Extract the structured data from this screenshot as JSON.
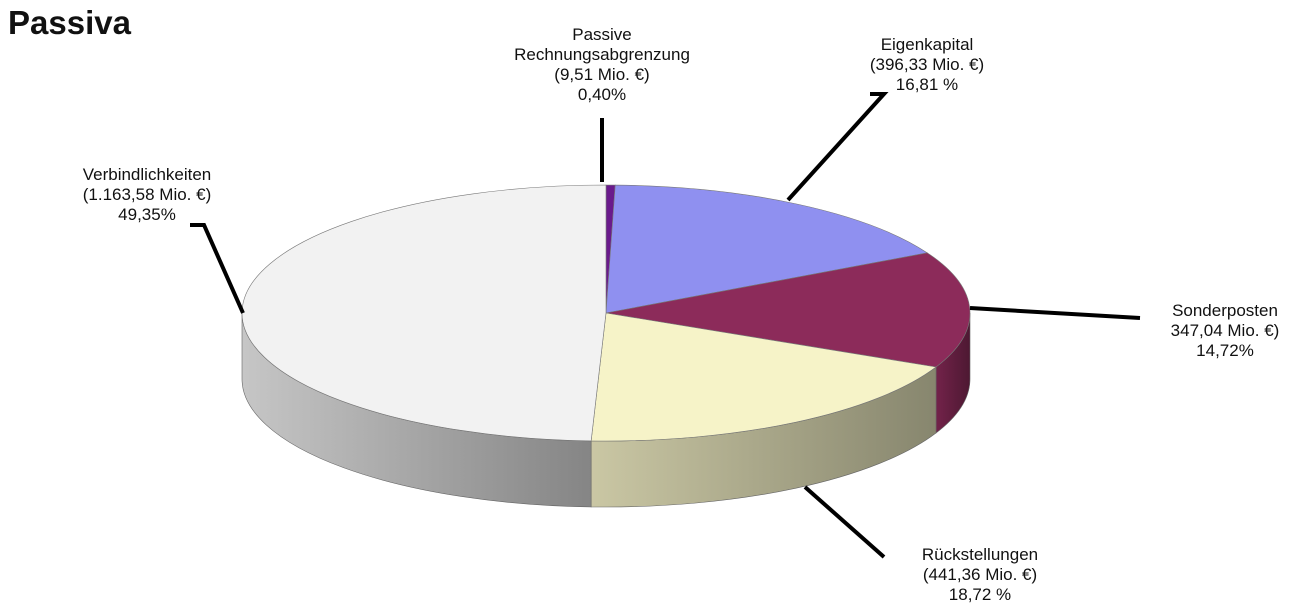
{
  "chart_data": {
    "type": "pie",
    "title": "Passiva",
    "slices": [
      {
        "lines": [
          "Passive",
          "Rechnungsabgrenzung",
          "(9,51 Mio. €)",
          "0,40%"
        ],
        "value": 9.51,
        "percent": 0.4,
        "color": "#6a1a8c"
      },
      {
        "lines": [
          "Eigenkapital",
          "(396,33 Mio. €)",
          "16,81 %"
        ],
        "value": 396.33,
        "percent": 16.81,
        "color": "#8f90f0"
      },
      {
        "lines": [
          "Sonderposten",
          "347,04 Mio. €)",
          "14,72%"
        ],
        "value": 347.04,
        "percent": 14.72,
        "color": "#8c2b5a"
      },
      {
        "lines": [
          "Rückstellungen",
          "(441,36 Mio. €)",
          "18,72 %"
        ],
        "value": 441.36,
        "percent": 18.72,
        "color": "#f6f3c8"
      },
      {
        "lines": [
          "Verbindlichkeiten",
          "(1.163,58 Mio. €)",
          "49,35%"
        ],
        "value": 1163.58,
        "percent": 49.35,
        "color": "#f2f2f2"
      }
    ]
  }
}
